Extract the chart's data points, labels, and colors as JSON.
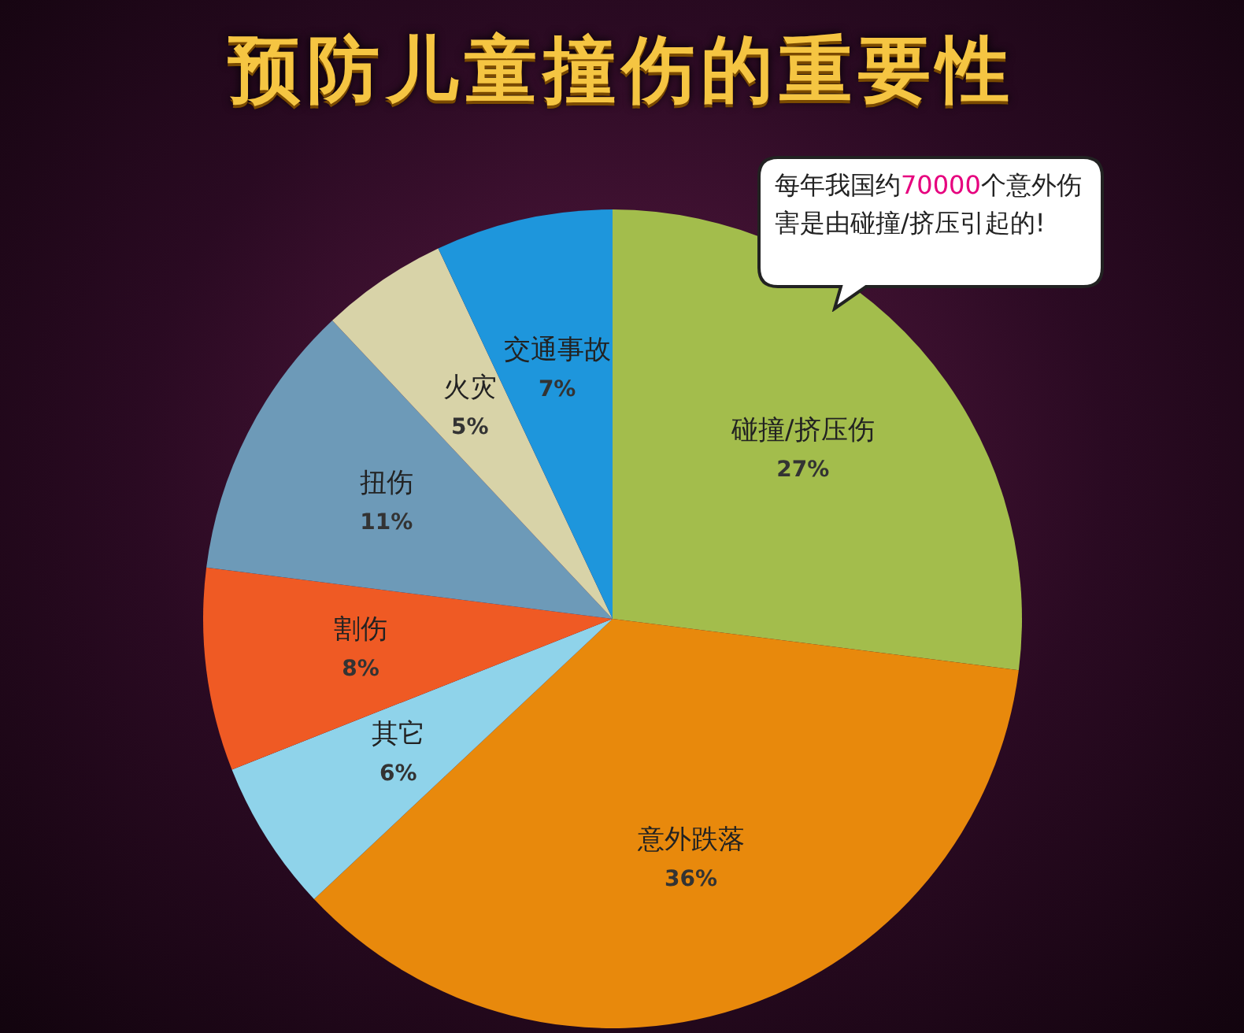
{
  "chart_data": {
    "type": "pie",
    "title": "预防儿童撞伤的重要性",
    "categories": [
      "碰撞/挤压伤",
      "意外跌落",
      "其它",
      "割伤",
      "扭伤",
      "火灾",
      "交通事故"
    ],
    "values": [
      27,
      36,
      6,
      8,
      11,
      5,
      7
    ],
    "value_labels": [
      "27%",
      "36%",
      "6%",
      "8%",
      "11%",
      "5%",
      "7%"
    ],
    "colors": [
      "#a3bd4c",
      "#e8890c",
      "#8fd3ea",
      "#ef5a24",
      "#6d9ab8",
      "#d8d3a8",
      "#1e96dc"
    ],
    "annotations": [
      "每年我国约70000个意外伤害是由碰撞/挤压引起的!"
    ]
  }
}
